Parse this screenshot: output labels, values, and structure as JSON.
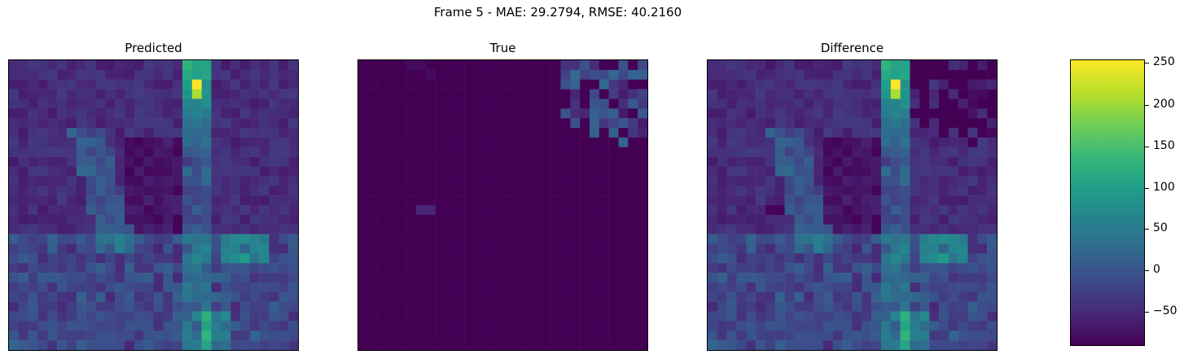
{
  "figure": {
    "suptitle": "Frame 5 - MAE: 29.2794, RMSE: 40.2160",
    "panels": [
      {
        "title": "Predicted"
      },
      {
        "title": "True"
      },
      {
        "title": "Difference"
      }
    ]
  },
  "colorbar": {
    "ticks": [
      "250",
      "200",
      "150",
      "100",
      "50",
      "0",
      "−50"
    ],
    "colormap": [
      "#440154",
      "#482878",
      "#3e4989",
      "#31688e",
      "#26828e",
      "#1f9e89",
      "#35b779",
      "#6ece58",
      "#b5de2b",
      "#fde725"
    ]
  },
  "chart_data": [
    {
      "type": "heatmap",
      "title": "Predicted",
      "grid_size": [
        30,
        30
      ],
      "value_range": [
        -90,
        253
      ],
      "features": {
        "hot_spot": {
          "row": 2,
          "col": 19,
          "value": 252
        },
        "upper_right_block_top_row": 18,
        "lower_bright_cluster": {
          "row": 18,
          "col": 24,
          "value": 140
        }
      }
    },
    {
      "type": "heatmap",
      "title": "True",
      "grid_size": [
        30,
        30
      ],
      "background_value": -90,
      "features": {
        "upper_right_patch_value": 20,
        "small_patch": {
          "row": 15,
          "col": 6,
          "value": -55
        }
      }
    },
    {
      "type": "heatmap",
      "title": "Difference",
      "grid_size": [
        30,
        30
      ],
      "value_range": [
        -90,
        253
      ],
      "features": {
        "hot_spot": {
          "row": 2,
          "col": 19,
          "value": 252
        }
      }
    }
  ]
}
